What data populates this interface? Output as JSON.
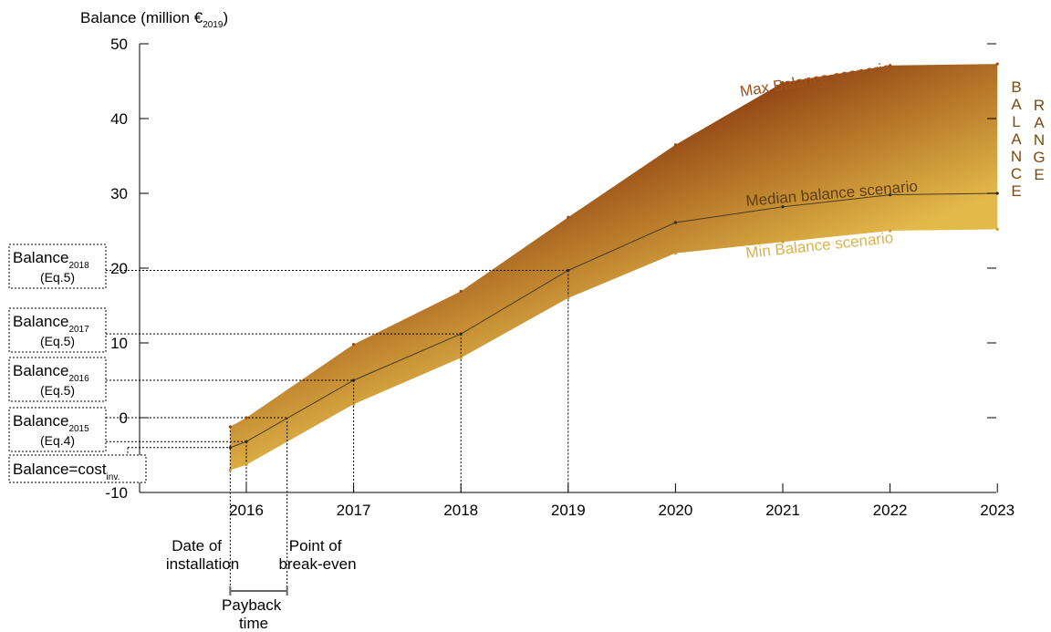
{
  "chart_data": {
    "type": "area",
    "ylabel_main": "Balance (million €",
    "ylabel_sub": "2019",
    "ylabel_close": ")",
    "ylim": [
      -10,
      50
    ],
    "y_ticks": [
      "-10",
      "0",
      "10",
      "20",
      "30",
      "40",
      "50"
    ],
    "xlim": [
      2015.0,
      2023.0
    ],
    "x_ticks": [
      "2016",
      "2017",
      "2018",
      "2019",
      "2020",
      "2021",
      "2022",
      "2023"
    ],
    "grid": false,
    "series": [
      {
        "name": "Max Balance scenario",
        "x": [
          2015.85,
          2016.0,
          2017.0,
          2018.0,
          2019.0,
          2020.0,
          2021.0,
          2022.0,
          2023.0
        ],
        "y": [
          -1.2,
          0.0,
          9.8,
          16.9,
          26.8,
          36.5,
          44.8,
          47.1,
          47.3
        ]
      },
      {
        "name": "Median balance scenario",
        "x": [
          2015.85,
          2016.0,
          2017.0,
          2018.0,
          2019.0,
          2020.0,
          2021.0,
          2022.0,
          2023.0
        ],
        "y": [
          -4.0,
          -3.2,
          5.0,
          11.2,
          19.7,
          26.1,
          28.2,
          29.8,
          30.0
        ]
      },
      {
        "name": "Min Balance scenario",
        "x": [
          2015.85,
          2016.0,
          2017.0,
          2018.0,
          2019.0,
          2020.0,
          2021.0,
          2022.0,
          2023.0
        ],
        "y": [
          -7.0,
          -6.3,
          1.8,
          8.0,
          16.0,
          22.0,
          23.5,
          25.0,
          25.2
        ]
      }
    ],
    "range_label": [
      "B",
      "A",
      "L",
      "A",
      "N",
      "C",
      "E"
    ],
    "range_label_2": [
      "R",
      "A",
      "N",
      "G",
      "E"
    ],
    "colors": {
      "max": "#8b3a10",
      "mid": "#b87a2a",
      "min": "#e3b94a",
      "median_line": "#4a3a1e",
      "max_label": "#a0551a",
      "median_label": "#5c3e10",
      "min_label": "#d9b24a",
      "range_label": "#7a4a10"
    },
    "annotations": {
      "boxes": [
        {
          "main": "Balance",
          "sub": "2018",
          "eq": "(Eq.5)",
          "value": 19.7
        },
        {
          "main": "Balance",
          "sub": "2017",
          "eq": "(Eq.5)",
          "value": 11.2
        },
        {
          "main": "Balance",
          "sub": "2016",
          "eq": "(Eq.5)",
          "value": 5.0
        },
        {
          "main": "Balance",
          "sub": "2015",
          "eq": "(Eq.4)",
          "value": -3.2
        }
      ],
      "cost_box": {
        "main": "Balance=cost",
        "sub": "inv.",
        "value": -4.0
      },
      "installation_label": [
        "Date of",
        "installation"
      ],
      "breakeven_label": [
        "Point of",
        "break-even"
      ],
      "payback_label": [
        "Payback",
        "time"
      ],
      "installation_x": 2015.85,
      "breakeven_x": 2016.38,
      "zero_value": 0.0
    }
  }
}
